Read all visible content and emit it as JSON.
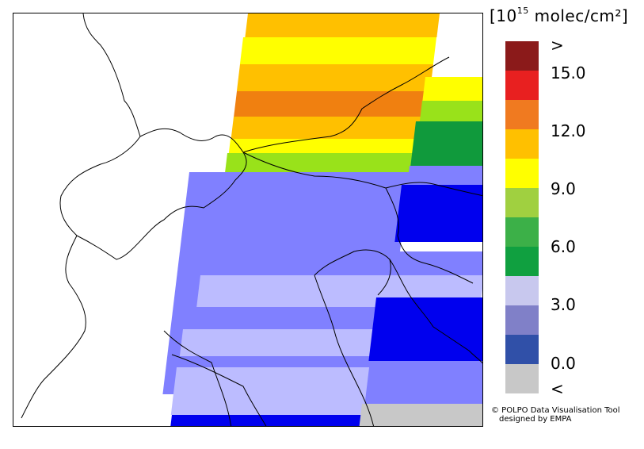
{
  "legend": {
    "unit_base": "[10",
    "unit_exp": "15",
    "unit_rest": " molec/cm²]",
    "above_label": ">",
    "below_label": "<",
    "tick_labels": [
      "15.0",
      "12.0",
      "9.0",
      "6.0",
      "3.0",
      "0.0"
    ],
    "bin_colors": [
      "#8b1a1a",
      "#e82020",
      "#f07a20",
      "#ffc000",
      "#ffff00",
      "#a0d040",
      "#3cb048",
      "#10a040",
      "#c8c8ee",
      "#8080c8",
      "#3050a8",
      "#c8c8c8"
    ]
  },
  "credit": {
    "line1": "© POLPO Data Visualisation Tool",
    "line2": "designed by EMPA"
  },
  "colors": {
    "red": "#e82020",
    "orange": "#f08010",
    "light_orange": "#ffc000",
    "yellow": "#ffff00",
    "light_green": "#99e21a",
    "green": "#109a3c",
    "periwinkle": "#8080ff",
    "lavender": "#bcbcff",
    "blue": "#0000ee",
    "gray": "#c8c8c8"
  }
}
